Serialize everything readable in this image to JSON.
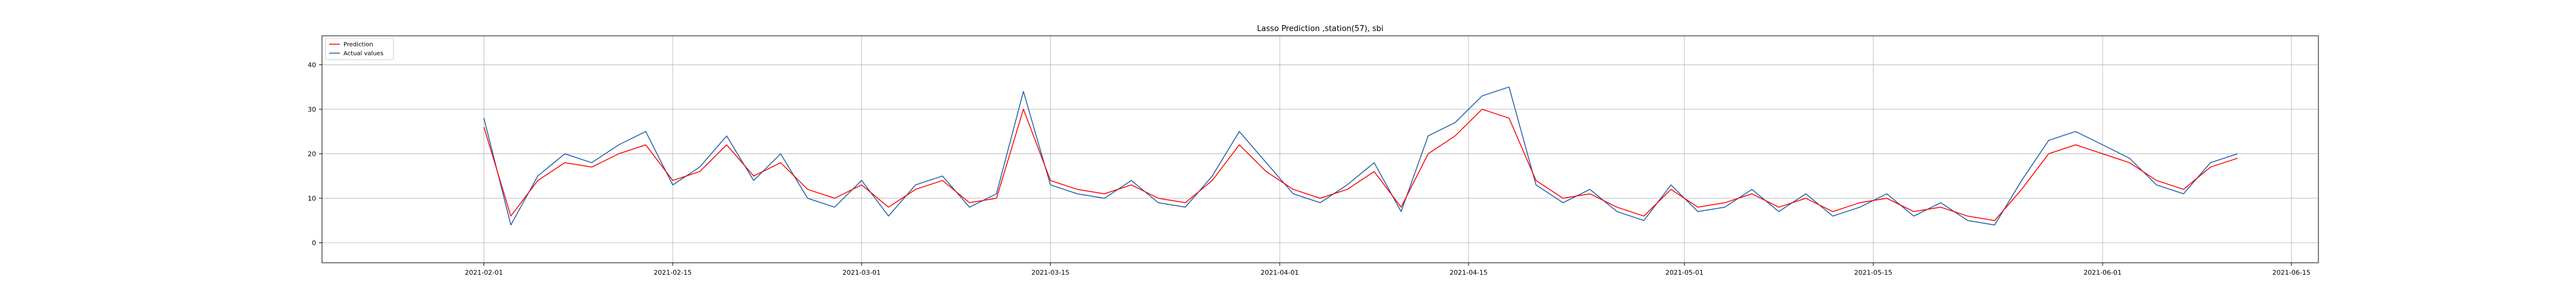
{
  "chart_data": {
    "type": "line",
    "title": "Lasso Prediction ,station(57), sbi",
    "xlabel": "",
    "ylabel": "",
    "x_range": [
      "2021-01-20",
      "2021-06-17"
    ],
    "ylim": [
      -4.5,
      46.5
    ],
    "x_ticks": [
      "2021-02-01",
      "2021-02-15",
      "2021-03-01",
      "2021-03-15",
      "2021-04-01",
      "2021-04-15",
      "2021-05-01",
      "2021-05-15",
      "2021-06-01",
      "2021-06-15"
    ],
    "y_ticks": [
      0,
      10,
      20,
      30,
      40
    ],
    "grid": true,
    "legend_position": "upper-left",
    "series": [
      {
        "name": "Prediction",
        "color": "#ff0000",
        "x": [
          "2021-02-01",
          "2021-02-03",
          "2021-02-05",
          "2021-02-07",
          "2021-02-09",
          "2021-02-11",
          "2021-02-13",
          "2021-02-15",
          "2021-02-17",
          "2021-02-19",
          "2021-02-21",
          "2021-02-23",
          "2021-02-25",
          "2021-02-27",
          "2021-03-01",
          "2021-03-03",
          "2021-03-05",
          "2021-03-07",
          "2021-03-09",
          "2021-03-11",
          "2021-03-13",
          "2021-03-15",
          "2021-03-17",
          "2021-03-19",
          "2021-03-21",
          "2021-03-23",
          "2021-03-25",
          "2021-03-27",
          "2021-03-29",
          "2021-03-31",
          "2021-04-02",
          "2021-04-04",
          "2021-04-06",
          "2021-04-08",
          "2021-04-10",
          "2021-04-12",
          "2021-04-14",
          "2021-04-16",
          "2021-04-18",
          "2021-04-20",
          "2021-04-22",
          "2021-04-24",
          "2021-04-26",
          "2021-04-28",
          "2021-04-30",
          "2021-05-02",
          "2021-05-04",
          "2021-05-06",
          "2021-05-08",
          "2021-05-10",
          "2021-05-12",
          "2021-05-14",
          "2021-05-16",
          "2021-05-18",
          "2021-05-20",
          "2021-05-22",
          "2021-05-24",
          "2021-05-26",
          "2021-05-28",
          "2021-05-30",
          "2021-06-01",
          "2021-06-03",
          "2021-06-05",
          "2021-06-07",
          "2021-06-09",
          "2021-06-11"
        ],
        "y": [
          26,
          6,
          14,
          18,
          17,
          20,
          22,
          14,
          16,
          22,
          15,
          18,
          12,
          10,
          13,
          8,
          12,
          14,
          9,
          10,
          30,
          14,
          12,
          11,
          13,
          10,
          9,
          14,
          22,
          16,
          12,
          10,
          12,
          16,
          8,
          20,
          24,
          30,
          28,
          14,
          10,
          11,
          8,
          6,
          12,
          8,
          9,
          11,
          8,
          10,
          7,
          9,
          10,
          7,
          8,
          6,
          5,
          12,
          20,
          22,
          20,
          18,
          14,
          12,
          17,
          19
        ]
      },
      {
        "name": "Actual values",
        "color": "#1f5fa8",
        "x": [
          "2021-02-01",
          "2021-02-03",
          "2021-02-05",
          "2021-02-07",
          "2021-02-09",
          "2021-02-11",
          "2021-02-13",
          "2021-02-15",
          "2021-02-17",
          "2021-02-19",
          "2021-02-21",
          "2021-02-23",
          "2021-02-25",
          "2021-02-27",
          "2021-03-01",
          "2021-03-03",
          "2021-03-05",
          "2021-03-07",
          "2021-03-09",
          "2021-03-11",
          "2021-03-13",
          "2021-03-15",
          "2021-03-17",
          "2021-03-19",
          "2021-03-21",
          "2021-03-23",
          "2021-03-25",
          "2021-03-27",
          "2021-03-29",
          "2021-03-31",
          "2021-04-02",
          "2021-04-04",
          "2021-04-06",
          "2021-04-08",
          "2021-04-10",
          "2021-04-12",
          "2021-04-14",
          "2021-04-16",
          "2021-04-18",
          "2021-04-20",
          "2021-04-22",
          "2021-04-24",
          "2021-04-26",
          "2021-04-28",
          "2021-04-30",
          "2021-05-02",
          "2021-05-04",
          "2021-05-06",
          "2021-05-08",
          "2021-05-10",
          "2021-05-12",
          "2021-05-14",
          "2021-05-16",
          "2021-05-18",
          "2021-05-20",
          "2021-05-22",
          "2021-05-24",
          "2021-05-26",
          "2021-05-28",
          "2021-05-30",
          "2021-06-01",
          "2021-06-03",
          "2021-06-05",
          "2021-06-07",
          "2021-06-09",
          "2021-06-11"
        ],
        "y": [
          28,
          4,
          15,
          20,
          18,
          22,
          25,
          13,
          17,
          24,
          14,
          20,
          10,
          8,
          14,
          6,
          13,
          15,
          8,
          11,
          34,
          13,
          11,
          10,
          14,
          9,
          8,
          15,
          25,
          18,
          11,
          9,
          13,
          18,
          7,
          24,
          27,
          33,
          35,
          13,
          9,
          12,
          7,
          5,
          13,
          7,
          8,
          12,
          7,
          11,
          6,
          8,
          11,
          6,
          9,
          5,
          4,
          14,
          23,
          25,
          22,
          19,
          13,
          11,
          18,
          20
        ]
      }
    ]
  }
}
